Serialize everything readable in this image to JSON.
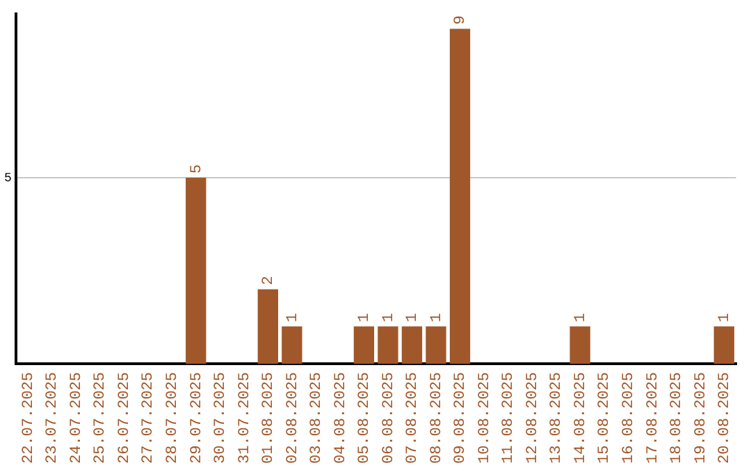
{
  "chart_data": {
    "type": "bar",
    "categories": [
      "22.07.2025",
      "23.07.2025",
      "24.07.2025",
      "25.07.2025",
      "26.07.2025",
      "27.07.2025",
      "28.07.2025",
      "29.07.2025",
      "30.07.2025",
      "31.07.2025",
      "01.08.2025",
      "02.08.2025",
      "03.08.2025",
      "04.08.2025",
      "05.08.2025",
      "06.08.2025",
      "07.08.2025",
      "08.08.2025",
      "09.08.2025",
      "10.08.2025",
      "11.08.2025",
      "12.08.2025",
      "13.08.2025",
      "14.08.2025",
      "15.08.2025",
      "16.08.2025",
      "17.08.2025",
      "18.08.2025",
      "19.08.2025",
      "20.08.2025"
    ],
    "values": [
      0,
      0,
      0,
      0,
      0,
      0,
      0,
      5,
      0,
      0,
      2,
      1,
      0,
      0,
      1,
      1,
      1,
      1,
      9,
      0,
      0,
      0,
      0,
      1,
      0,
      0,
      0,
      0,
      0,
      1
    ],
    "value_labels": [
      null,
      null,
      null,
      null,
      null,
      null,
      null,
      "5",
      null,
      null,
      "2",
      "1",
      null,
      null,
      "1",
      "1",
      "1",
      "1",
      "9",
      null,
      null,
      null,
      null,
      "1",
      null,
      null,
      null,
      null,
      null,
      "1"
    ],
    "color": "#a0572a",
    "ylim": [
      0,
      9.4
    ],
    "yticks": [
      5
    ],
    "grid": "y",
    "legend": false
  }
}
